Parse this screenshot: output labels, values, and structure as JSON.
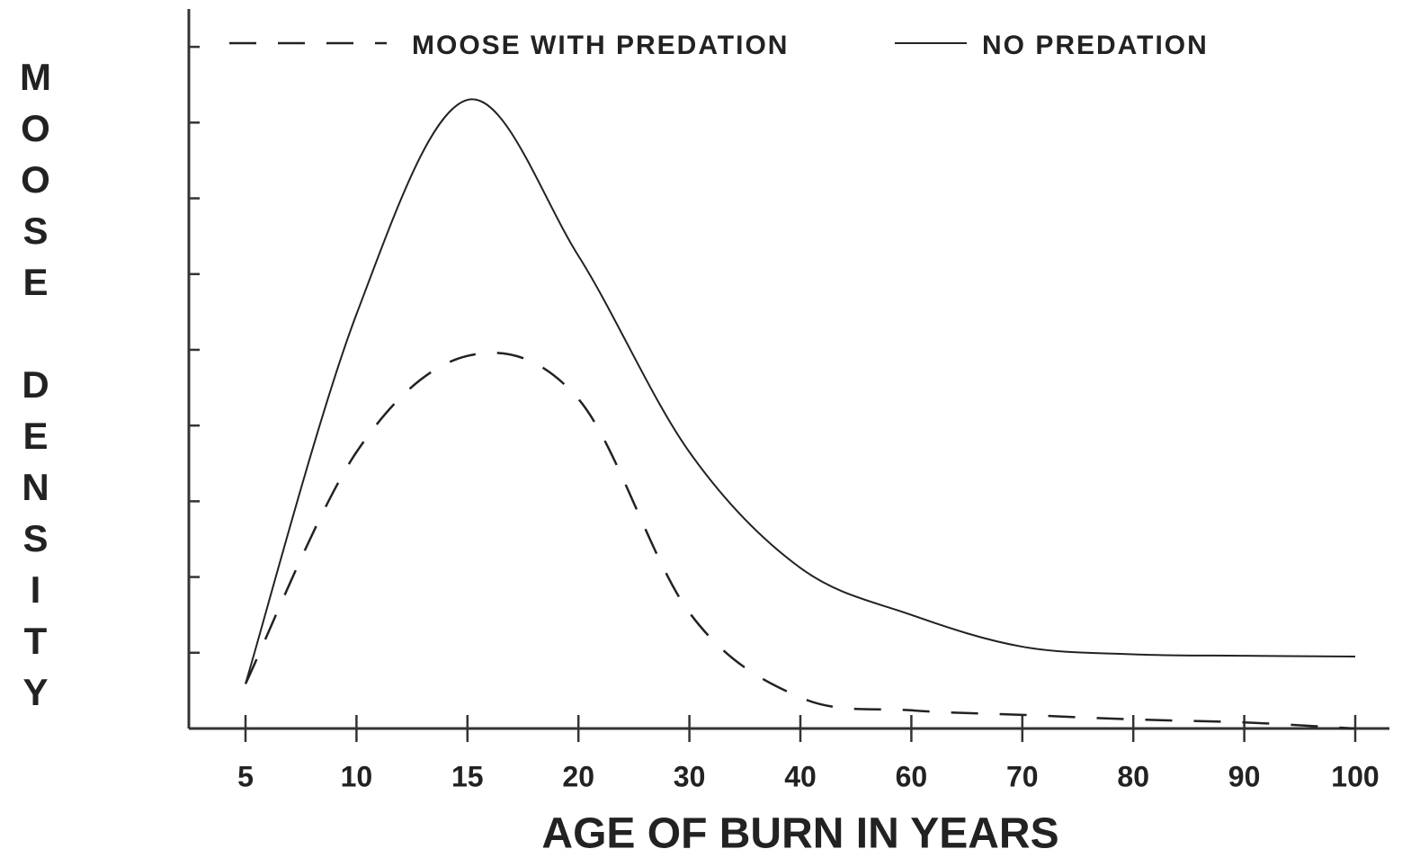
{
  "chart_data": {
    "type": "line",
    "xlabel": "AGE OF BURN IN YEARS",
    "ylabel": "MOOSE DENSITY",
    "categories": [
      "5",
      "10",
      "15",
      "20",
      "30",
      "40",
      "60",
      "70",
      "80",
      "90",
      "100"
    ],
    "series": [
      {
        "name": "MOOSE WITH PREDATION",
        "color": "#222222",
        "dashed": true,
        "values": [
          0.59,
          3.65,
          4.92,
          4.35,
          1.53,
          0.41,
          0.24,
          0.18,
          0.12,
          0.08,
          0
        ]
      },
      {
        "name": "NO PREDATION",
        "color": "#222222",
        "dashed": false,
        "values": [
          0.59,
          5.47,
          8.3,
          6.24,
          3.65,
          2.12,
          1.5,
          1.08,
          0.98,
          0.96,
          0.95
        ]
      }
    ],
    "ylim": [
      0,
      9.5
    ],
    "yticks": [
      1,
      2,
      3,
      4,
      5,
      6,
      7,
      8,
      9
    ]
  }
}
